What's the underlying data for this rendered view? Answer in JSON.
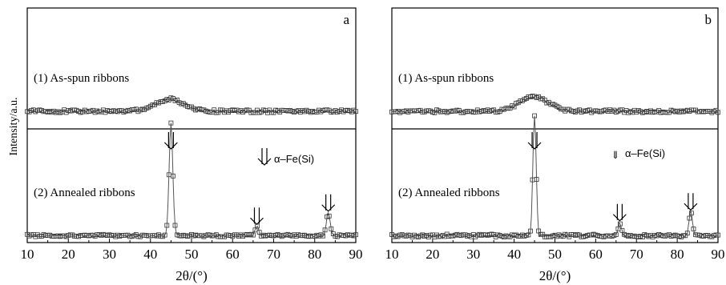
{
  "ylabel": "Intensity/a.u.",
  "chart_data": [
    {
      "type": "line",
      "panel_label": "a",
      "xlabel": "2θ/(°)",
      "ylabel": "Intensity/a.u.",
      "xlim": [
        10,
        90
      ],
      "xticks": [
        "10",
        "20",
        "30",
        "40",
        "50",
        "60",
        "70",
        "80",
        "90"
      ],
      "legend_marker": "⇓",
      "legend_text": "α–Fe(Si)",
      "marker_style": "square-open",
      "series": [
        {
          "name": "(1) As-spun ribbons",
          "baseline": 0.08,
          "noise": 0.012,
          "peaks": [
            {
              "x": 44.8,
              "height": 0.1,
              "width": 3.5
            }
          ]
        },
        {
          "name": "(2) Annealed ribbons",
          "baseline": 0.045,
          "noise": 0.01,
          "peaks": [
            {
              "x": 45.0,
              "height": 0.93,
              "width": 0.45
            },
            {
              "x": 65.9,
              "height": 0.08,
              "width": 0.45
            },
            {
              "x": 83.3,
              "height": 0.19,
              "width": 0.45
            }
          ],
          "arrow_peaks": [
            45.0,
            65.9,
            83.3
          ]
        }
      ]
    },
    {
      "type": "line",
      "panel_label": "b",
      "xlabel": "2θ/(°)",
      "ylabel": "",
      "xlim": [
        10,
        90
      ],
      "xticks": [
        "10",
        "20",
        "30",
        "40",
        "50",
        "60",
        "70",
        "80",
        "90"
      ],
      "legend_marker": "⇓",
      "legend_text": "α–Fe(Si)",
      "marker_style": "square-open",
      "series": [
        {
          "name": "(1) As-spun ribbons",
          "baseline": 0.08,
          "noise": 0.012,
          "peaks": [
            {
              "x": 44.8,
              "height": 0.12,
              "width": 3.5
            }
          ]
        },
        {
          "name": "(2) Annealed ribbons",
          "baseline": 0.045,
          "noise": 0.012,
          "peaks": [
            {
              "x": 45.0,
              "height": 1.0,
              "width": 0.4
            },
            {
              "x": 65.9,
              "height": 0.11,
              "width": 0.4
            },
            {
              "x": 83.3,
              "height": 0.2,
              "width": 0.4
            }
          ],
          "arrow_peaks": [
            45.0,
            65.9,
            83.3
          ]
        }
      ]
    }
  ]
}
